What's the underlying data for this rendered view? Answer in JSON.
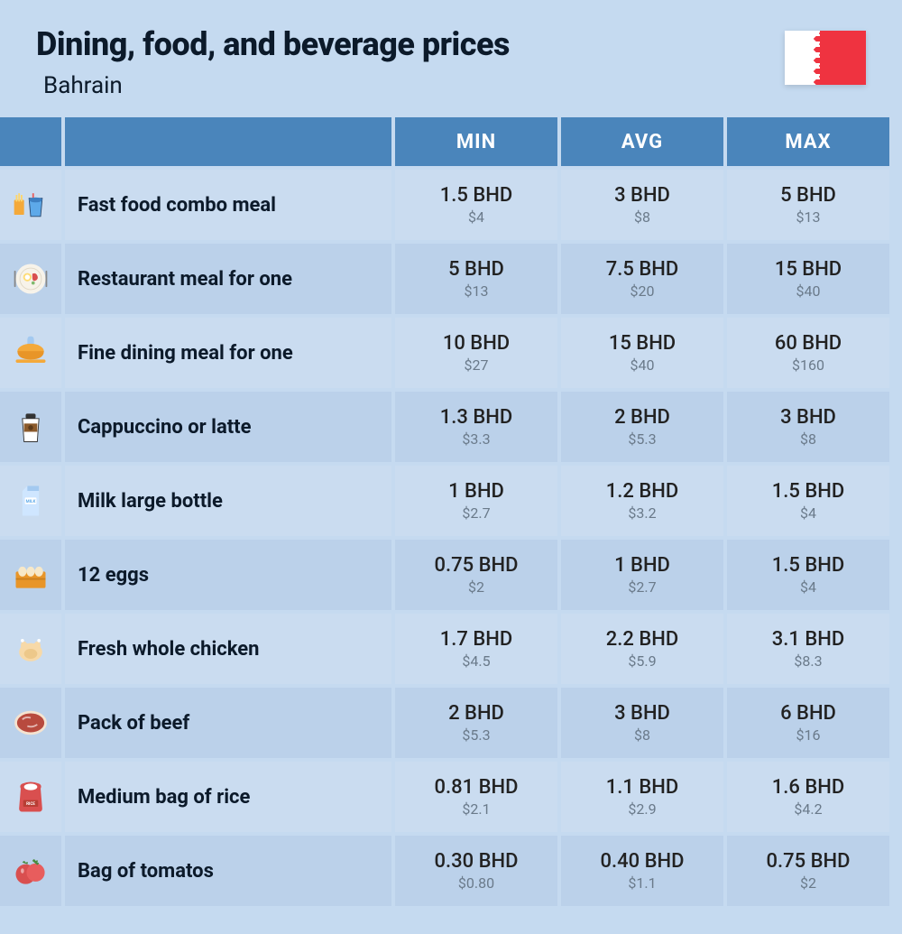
{
  "header": {
    "title": "Dining, food, and beverage prices",
    "subtitle": "Bahrain",
    "flag": {
      "leftColor": "#ffffff",
      "rightColor": "#ef3340"
    }
  },
  "table": {
    "columns": [
      "",
      "",
      "MIN",
      "AVG",
      "MAX"
    ],
    "currency": "BHD",
    "secondaryCurrency": "$",
    "colors": {
      "headerBg": "#4a85bb",
      "headerText": "#ffffff",
      "rowOdd": "#cadcf0",
      "rowEven": "#bbd1ea",
      "pageBg": "#c5daf0",
      "textPrimary": "#0c1a2a",
      "textSecondary": "#6a7a8a"
    },
    "rows": [
      {
        "icon": "fast-food-icon",
        "name": "Fast food combo meal",
        "min": {
          "bhd": "1.5",
          "usd": "4"
        },
        "avg": {
          "bhd": "3",
          "usd": "8"
        },
        "max": {
          "bhd": "5",
          "usd": "13"
        }
      },
      {
        "icon": "restaurant-icon",
        "name": "Restaurant meal for one",
        "min": {
          "bhd": "5",
          "usd": "13"
        },
        "avg": {
          "bhd": "7.5",
          "usd": "20"
        },
        "max": {
          "bhd": "15",
          "usd": "40"
        }
      },
      {
        "icon": "fine-dining-icon",
        "name": "Fine dining meal for one",
        "min": {
          "bhd": "10",
          "usd": "27"
        },
        "avg": {
          "bhd": "15",
          "usd": "40"
        },
        "max": {
          "bhd": "60",
          "usd": "160"
        }
      },
      {
        "icon": "coffee-icon",
        "name": "Cappuccino or latte",
        "min": {
          "bhd": "1.3",
          "usd": "3.3"
        },
        "avg": {
          "bhd": "2",
          "usd": "5.3"
        },
        "max": {
          "bhd": "3",
          "usd": "8"
        }
      },
      {
        "icon": "milk-icon",
        "name": "Milk large bottle",
        "min": {
          "bhd": "1",
          "usd": "2.7"
        },
        "avg": {
          "bhd": "1.2",
          "usd": "3.2"
        },
        "max": {
          "bhd": "1.5",
          "usd": "4"
        }
      },
      {
        "icon": "eggs-icon",
        "name": "12 eggs",
        "min": {
          "bhd": "0.75",
          "usd": "2"
        },
        "avg": {
          "bhd": "1",
          "usd": "2.7"
        },
        "max": {
          "bhd": "1.5",
          "usd": "4"
        }
      },
      {
        "icon": "chicken-icon",
        "name": "Fresh whole chicken",
        "min": {
          "bhd": "1.7",
          "usd": "4.5"
        },
        "avg": {
          "bhd": "2.2",
          "usd": "5.9"
        },
        "max": {
          "bhd": "3.1",
          "usd": "8.3"
        }
      },
      {
        "icon": "beef-icon",
        "name": "Pack of beef",
        "min": {
          "bhd": "2",
          "usd": "5.3"
        },
        "avg": {
          "bhd": "3",
          "usd": "8"
        },
        "max": {
          "bhd": "6",
          "usd": "16"
        }
      },
      {
        "icon": "rice-icon",
        "name": "Medium bag of rice",
        "min": {
          "bhd": "0.81",
          "usd": "2.1"
        },
        "avg": {
          "bhd": "1.1",
          "usd": "2.9"
        },
        "max": {
          "bhd": "1.6",
          "usd": "4.2"
        }
      },
      {
        "icon": "tomato-icon",
        "name": "Bag of tomatos",
        "min": {
          "bhd": "0.30",
          "usd": "0.80"
        },
        "avg": {
          "bhd": "0.40",
          "usd": "1.1"
        },
        "max": {
          "bhd": "0.75",
          "usd": "2"
        }
      }
    ]
  },
  "icons": {
    "fast-food-icon": "<svg viewBox='0 0 48 48'><rect x='4' y='18' width='12' height='18' rx='1' fill='#f4a93a'/><rect x='6' y='12' width='2' height='8' fill='#ffd66b'/><rect x='9' y='10' width='2' height='10' fill='#ffd66b'/><rect x='12' y='12' width='2' height='8' fill='#ffd66b'/><path d='M22 16 L38 16 L36 38 L24 38 Z' fill='#5da9e9' stroke='#2b4a6f' stroke-width='1'/><rect x='26' y='10' width='2' height='8' fill='#e85d5d'/><ellipse cx='30' cy='18' rx='8' ry='3' fill='#3d7fc1'/></svg>",
    "restaurant-icon": "<svg viewBox='0 0 48 48'><circle cx='24' cy='24' r='18' fill='#f7f3ea'/><circle cx='24' cy='24' r='13' fill='none' stroke='#e0d8c5' stroke-width='1'/><circle cx='20' cy='22' r='5' fill='#ffdc73'/><circle cx='20' cy='22' r='3' fill='#fff'/><path d='M26 18 Q30 16 32 20 Q34 24 30 26 Q26 28 26 22' fill='#d94f4f'/><circle cx='27' cy='29' r='2' fill='#7fb96e'/><rect x='4' y='14' width='2' height='20' fill='#888' rx='1'/><rect x='42' y='14' width='2' height='20' fill='#888' rx='1'/></svg>",
    "fine-dining-icon": "<svg viewBox='0 0 48 48'><path d='M20 8 Q20 4 24 4 Q28 4 28 8 L28 14 L20 14 Z' fill='#a3c9f0'/><ellipse cx='24' cy='22' rx='16' ry='9' fill='#f4a93a'/><path d='M8 22 Q8 32 24 32 Q40 32 40 22' fill='#e89528'/><rect x='6' y='32' width='36' height='4' rx='2' fill='#f4a93a'/></svg>",
    "coffee-icon": "<svg viewBox='0 0 48 48'><path d='M14 14 L34 14 L32 42 L16 42 Z' fill='#fff' stroke='#333' stroke-width='1'/><rect x='16' y='20' width='16' height='10' fill='#8b5a2b'/><circle cx='24' cy='25' r='3' fill='#5c3a1a'/><rect x='18' y='8' width='12' height='6' fill='#333' rx='2'/></svg>",
    "milk-icon": "<svg viewBox='0 0 48 48'><path d='M14 12 L20 6 L34 6 L34 42 L14 42 Z' fill='#cfe6ff'/><path d='M20 6 L34 6 L34 12 L20 12 Z' fill='#a3c9f0'/><rect x='17' y='20' width='14' height='8' fill='#fff' rx='1'/><text x='24' y='26' font-size='5' fill='#5da9e9' text-anchor='middle' font-weight='bold'>MILK</text></svg>",
    "eggs-icon": "<svg viewBox='0 0 48 48'><rect x='6' y='20' width='36' height='20' fill='#e89528' rx='2'/><ellipse cx='14' cy='20' rx='5' ry='6' fill='#f7e8c8'/><ellipse cx='24' cy='20' rx='5' ry='6' fill='#f7e8c8'/><ellipse cx='34' cy='20' rx='5' ry='6' fill='#f7e8c8'/><rect x='6' y='28' width='36' height='2' fill='#c97f1f'/></svg>",
    "chicken-icon": "<svg viewBox='0 0 48 48'><ellipse cx='24' cy='28' rx='14' ry='11' fill='#f7d9a8'/><ellipse cx='16' cy='20' rx='4' ry='5' fill='#f7d9a8'/><ellipse cx='32' cy='20' rx='4' ry='5' fill='#f7d9a8'/><circle cx='14' cy='14' r='2' fill='#fff'/><circle cx='34' cy='14' r='2' fill='#fff'/><ellipse cx='24' cy='30' rx='8' ry='6' fill='#edc88a'/></svg>",
    "beef-icon": "<svg viewBox='0 0 48 48'><ellipse cx='24' cy='24' rx='18' ry='13' fill='#b84a3e'/><ellipse cx='24' cy='24' rx='18' ry='13' fill='none' stroke='#f5e3d0' stroke-width='3'/><path d='M14 20 Q18 16 24 18' stroke='#fff' stroke-width='2' fill='none' opacity='0.6'/><path d='M20 28 Q26 30 32 26' stroke='#fff' stroke-width='2' fill='none' opacity='0.6'/></svg>",
    "rice-icon": "<svg viewBox='0 0 48 48'><path d='M12 14 Q10 10 14 8 Q24 4 34 8 Q38 10 36 14 L38 38 Q38 42 34 42 L14 42 Q10 42 10 38 Z' fill='#d94f4f'/><ellipse cx='24' cy='12' rx='8' ry='4' fill='#fff'/><rect x='15' y='28' width='18' height='8' fill='#b83e34' rx='1'/><text x='24' y='34' font-size='5' fill='#fff' text-anchor='middle' font-weight='bold'>RICE</text></svg>",
    "tomato-icon": "<svg viewBox='0 0 48 48'><circle cx='18' cy='28' r='12' fill='#d94f4f'/><circle cx='30' cy='26' r='11' fill='#e85d5d'/><path d='M26 12 Q28 8 30 12 Q34 10 32 14 Q36 14 32 17' fill='#4a8c3f'/><path d='M14 14 Q16 10 18 14 Q22 12 20 16' fill='#4a8c3f'/><ellipse cx='14' cy='24' rx='2' ry='3' fill='#fff' opacity='0.5'/></svg>"
  }
}
